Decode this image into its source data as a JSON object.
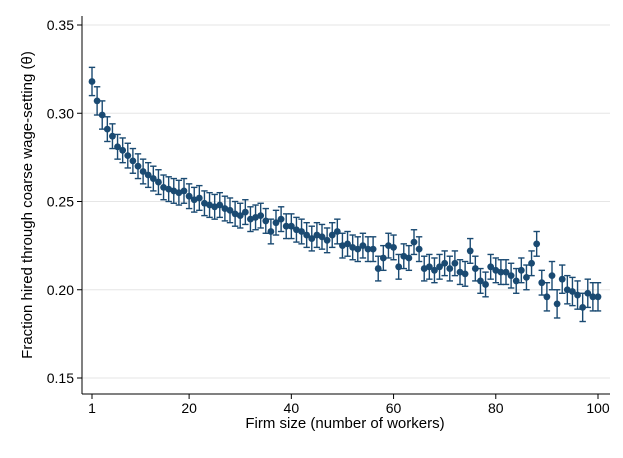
{
  "chart_data": {
    "type": "scatter",
    "title": "",
    "xlabel": "Firm size (number of workers)",
    "ylabel": "Fraction hired through coarse wage-setting (θ)",
    "xlim": [
      1,
      100
    ],
    "ylim": [
      0.15,
      0.35
    ],
    "xticks": [
      1,
      20,
      40,
      60,
      80,
      100
    ],
    "yticks": [
      0.15,
      0.2,
      0.25,
      0.3,
      0.35
    ],
    "ytick_labels": [
      "0.15",
      "0.20",
      "0.25",
      "0.30",
      "0.35"
    ],
    "grid": "horizontal",
    "marker_color": "#1a4a72",
    "x": [
      1,
      2,
      3,
      4,
      5,
      6,
      7,
      8,
      9,
      10,
      11,
      12,
      13,
      14,
      15,
      16,
      17,
      18,
      19,
      20,
      21,
      22,
      23,
      24,
      25,
      26,
      27,
      28,
      29,
      30,
      31,
      32,
      33,
      34,
      35,
      36,
      37,
      38,
      39,
      40,
      41,
      42,
      43,
      44,
      45,
      46,
      47,
      48,
      49,
      50,
      51,
      52,
      53,
      54,
      55,
      56,
      57,
      58,
      59,
      60,
      61,
      62,
      63,
      64,
      65,
      66,
      67,
      68,
      69,
      70,
      71,
      72,
      73,
      74,
      75,
      76,
      77,
      78,
      79,
      80,
      81,
      82,
      83,
      84,
      85,
      86,
      87,
      88,
      89,
      90,
      91,
      92,
      93,
      94,
      95,
      96,
      97,
      98,
      99,
      100
    ],
    "y": [
      0.318,
      0.307,
      0.299,
      0.291,
      0.287,
      0.281,
      0.279,
      0.276,
      0.273,
      0.27,
      0.267,
      0.265,
      0.263,
      0.261,
      0.258,
      0.257,
      0.256,
      0.255,
      0.256,
      0.253,
      0.251,
      0.252,
      0.249,
      0.248,
      0.247,
      0.248,
      0.246,
      0.245,
      0.243,
      0.242,
      0.244,
      0.24,
      0.241,
      0.242,
      0.239,
      0.233,
      0.238,
      0.24,
      0.236,
      0.236,
      0.234,
      0.233,
      0.231,
      0.229,
      0.231,
      0.23,
      0.228,
      0.231,
      0.233,
      0.225,
      0.226,
      0.224,
      0.223,
      0.225,
      0.223,
      0.223,
      0.212,
      0.218,
      0.225,
      0.224,
      0.213,
      0.219,
      0.218,
      0.227,
      0.223,
      0.212,
      0.213,
      0.211,
      0.213,
      0.215,
      0.212,
      0.215,
      0.21,
      0.209,
      0.222,
      0.212,
      0.205,
      0.203,
      0.213,
      0.211,
      0.21,
      0.21,
      0.208,
      0.205,
      0.211,
      0.207,
      0.215,
      0.226,
      0.204,
      0.196,
      0.208,
      0.192,
      0.206,
      0.2,
      0.199,
      0.197,
      0.19,
      0.198,
      0.196,
      0.196
    ],
    "ci_halfwidth": [
      0.008,
      0.008,
      0.008,
      0.007,
      0.007,
      0.007,
      0.007,
      0.007,
      0.007,
      0.007,
      0.007,
      0.007,
      0.007,
      0.007,
      0.007,
      0.007,
      0.007,
      0.007,
      0.007,
      0.007,
      0.007,
      0.007,
      0.007,
      0.007,
      0.007,
      0.007,
      0.007,
      0.007,
      0.007,
      0.007,
      0.007,
      0.007,
      0.007,
      0.007,
      0.007,
      0.007,
      0.007,
      0.007,
      0.007,
      0.007,
      0.007,
      0.007,
      0.007,
      0.007,
      0.007,
      0.007,
      0.007,
      0.007,
      0.007,
      0.007,
      0.007,
      0.007,
      0.007,
      0.007,
      0.007,
      0.007,
      0.007,
      0.007,
      0.007,
      0.007,
      0.007,
      0.007,
      0.007,
      0.007,
      0.007,
      0.007,
      0.007,
      0.007,
      0.007,
      0.007,
      0.007,
      0.007,
      0.007,
      0.007,
      0.007,
      0.007,
      0.007,
      0.007,
      0.007,
      0.007,
      0.007,
      0.007,
      0.007,
      0.007,
      0.007,
      0.007,
      0.007,
      0.007,
      0.007,
      0.008,
      0.008,
      0.008,
      0.008,
      0.008,
      0.008,
      0.008,
      0.008,
      0.008,
      0.008,
      0.008
    ]
  }
}
